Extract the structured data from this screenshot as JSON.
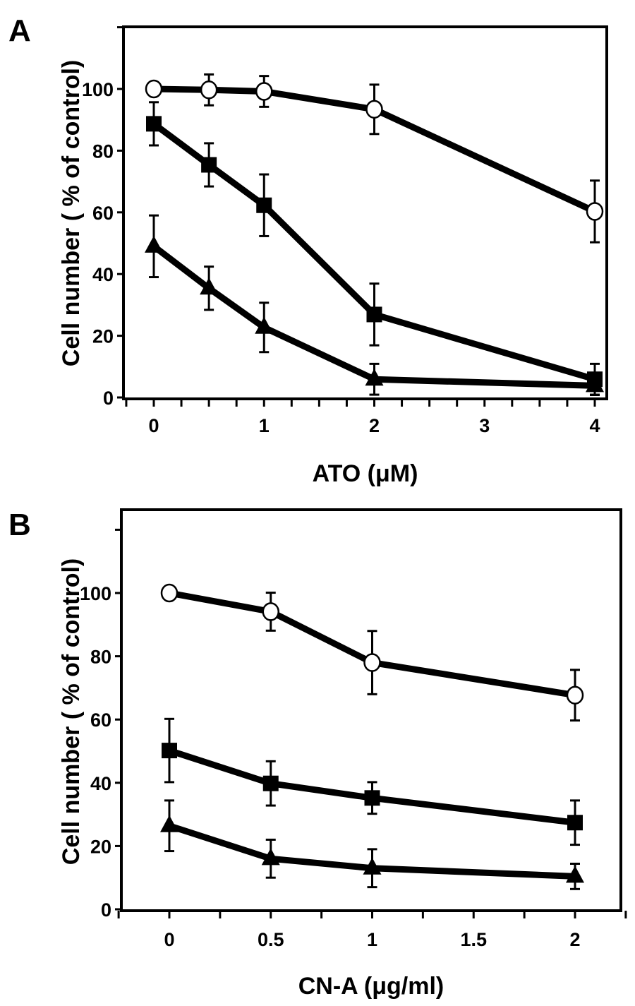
{
  "chart_data": [
    {
      "type": "line",
      "panel_label": "A",
      "xlabel": "ATO (μM)",
      "ylabel": "Cell number ( % of control)",
      "xlim": [
        -0.25,
        4.1
      ],
      "ylim": [
        0,
        120
      ],
      "x_ticks": [
        0,
        1,
        2,
        3,
        4
      ],
      "x_tick_labels": [
        "0",
        "1",
        "2",
        "3",
        "4"
      ],
      "y_ticks": [
        0,
        20,
        40,
        60,
        80,
        100
      ],
      "y_tick_labels": [
        "0",
        "20",
        "40",
        "60",
        "80",
        "100"
      ],
      "minor_x_step": 0.25,
      "grid": false,
      "series": [
        {
          "marker": "open-circle",
          "x": [
            0,
            0.5,
            1,
            2,
            4
          ],
          "values": [
            100,
            99.7,
            99.2,
            93.4,
            60.3
          ],
          "errors": [
            0,
            5,
            5,
            8,
            10
          ]
        },
        {
          "marker": "filled-square",
          "x": [
            0,
            0.5,
            1,
            2,
            4
          ],
          "values": [
            88.7,
            75.4,
            62.3,
            26.9,
            5.9
          ],
          "errors": [
            7,
            7,
            10,
            10,
            5
          ]
        },
        {
          "marker": "filled-triangle",
          "x": [
            0,
            0.5,
            1,
            2,
            4
          ],
          "values": [
            49,
            35.4,
            22.7,
            5.9,
            3.8
          ],
          "errors": [
            10,
            7,
            8,
            5,
            3
          ]
        }
      ]
    },
    {
      "type": "line",
      "panel_label": "B",
      "xlabel": "CN-A (μg/ml)",
      "ylabel": "Cell number ( % of control)",
      "xlim": [
        -0.25,
        2.25
      ],
      "ylim": [
        0,
        120
      ],
      "x_ticks": [
        0,
        0.5,
        1,
        1.5,
        2
      ],
      "x_tick_labels": [
        "0",
        "0.5",
        "1",
        "1.5",
        "2"
      ],
      "y_ticks": [
        0,
        20,
        40,
        60,
        80,
        100
      ],
      "y_tick_labels": [
        "0",
        "20",
        "40",
        "60",
        "80",
        "100"
      ],
      "minor_x_step": 0.25,
      "grid": false,
      "series": [
        {
          "marker": "open-circle",
          "x": [
            0,
            0.5,
            1,
            2
          ],
          "values": [
            100,
            94.1,
            78,
            67.7
          ],
          "errors": [
            0,
            6,
            10,
            8
          ]
        },
        {
          "marker": "filled-square",
          "x": [
            0,
            0.5,
            1,
            2
          ],
          "values": [
            50.2,
            39.8,
            35.2,
            27.4
          ],
          "errors": [
            10,
            7,
            5,
            7
          ]
        },
        {
          "marker": "filled-triangle",
          "x": [
            0,
            0.5,
            1,
            2
          ],
          "values": [
            26.4,
            16,
            13,
            10.4
          ],
          "errors": [
            8,
            6,
            6,
            4
          ]
        }
      ]
    }
  ]
}
